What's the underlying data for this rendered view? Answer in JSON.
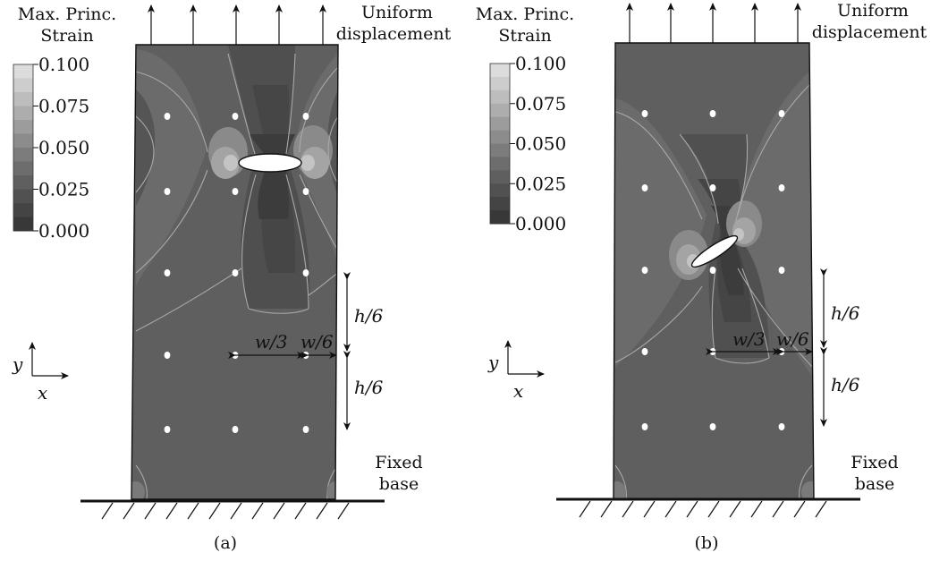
{
  "legend": {
    "title_line1": "Max. Princ.",
    "title_line2": "Strain",
    "ticks": [
      "0.100",
      "0.075",
      "0.050",
      "0.025",
      "0.000"
    ],
    "palette": [
      "#dcdcdc",
      "#cdcdcd",
      "#bdbdbd",
      "#adadad",
      "#9c9c9c",
      "#8c8c8c",
      "#7c7c7c",
      "#6d6d6d",
      "#5f5f5f",
      "#515151",
      "#444444",
      "#383838"
    ]
  },
  "labels": {
    "uniform_line1": "Uniform",
    "uniform_line2": "displacement",
    "fixed_line1": "Fixed",
    "fixed_line2": "base",
    "h6": "h/6",
    "w3": "w/3",
    "w6": "w/6",
    "axis_x": "x",
    "axis_y": "y"
  },
  "panels": [
    {
      "caption": "(a)",
      "crack_angle_deg": 0
    },
    {
      "caption": "(b)",
      "crack_angle_deg": -30
    }
  ],
  "colors": {
    "background_field": "#5f5f5f",
    "mid_field": "#6e6e6e",
    "low_field": "#464646",
    "contour_line": "#a9a9a9",
    "dots": "#ffffff"
  }
}
